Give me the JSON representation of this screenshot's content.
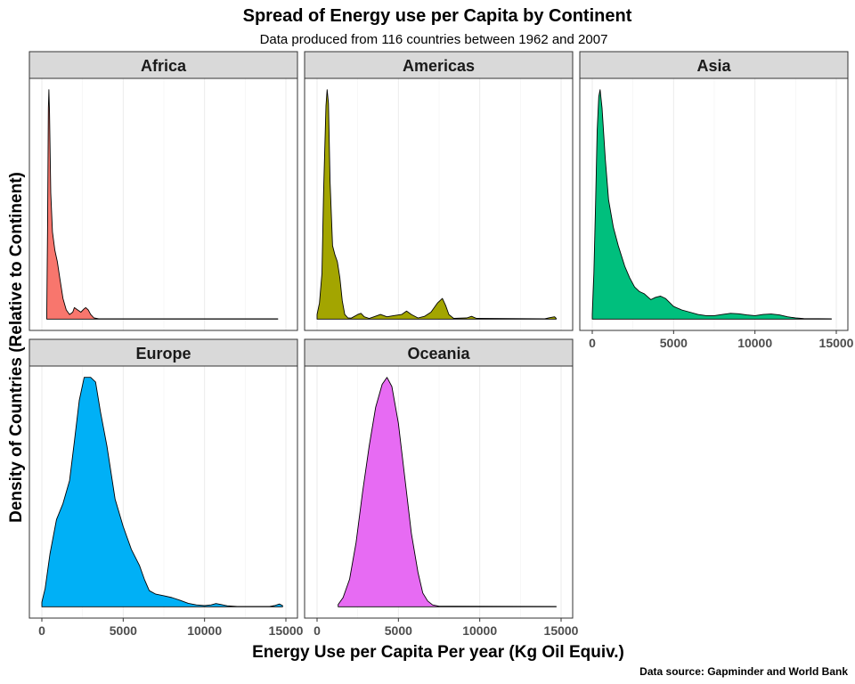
{
  "chart_data": {
    "type": "area",
    "title": "Spread of Energy use per Capita by Continent",
    "subtitle": "Data produced from 116 countries between 1962 and 2007",
    "xlabel": "Energy Use per Capita Per year (Kg Oil Equiv.)",
    "ylabel": "Density of Countries (Relative to Continent)",
    "caption": "Data source: Gapminder and World Bank",
    "xlim": [
      0,
      15000
    ],
    "x_ticks": [
      0,
      5000,
      10000,
      15000
    ],
    "x_tick_labels": [
      "0",
      "5000",
      "10000",
      "15000"
    ],
    "grid": true,
    "y_scale": "free (relative to continent)",
    "facets": [
      {
        "name": "Africa",
        "color": "#F8766D",
        "points": [
          [
            300,
            0.02
          ],
          [
            350,
            0.4
          ],
          [
            400,
            0.92
          ],
          [
            430,
            1.0
          ],
          [
            470,
            0.9
          ],
          [
            550,
            0.55
          ],
          [
            650,
            0.38
          ],
          [
            800,
            0.3
          ],
          [
            950,
            0.25
          ],
          [
            1100,
            0.18
          ],
          [
            1300,
            0.09
          ],
          [
            1500,
            0.04
          ],
          [
            1700,
            0.02
          ],
          [
            1900,
            0.03
          ],
          [
            2000,
            0.05
          ],
          [
            2200,
            0.04
          ],
          [
            2400,
            0.03
          ],
          [
            2600,
            0.045
          ],
          [
            2700,
            0.05
          ],
          [
            2850,
            0.04
          ],
          [
            3000,
            0.02
          ],
          [
            3200,
            0.005
          ],
          [
            3500,
            0.001
          ],
          [
            14500,
            0.001
          ]
        ]
      },
      {
        "name": "Americas",
        "color": "#A3A500",
        "points": [
          [
            0,
            0.02
          ],
          [
            150,
            0.07
          ],
          [
            300,
            0.2
          ],
          [
            400,
            0.55
          ],
          [
            550,
            0.93
          ],
          [
            620,
            1.0
          ],
          [
            700,
            0.94
          ],
          [
            800,
            0.6
          ],
          [
            950,
            0.32
          ],
          [
            1100,
            0.28
          ],
          [
            1250,
            0.25
          ],
          [
            1400,
            0.18
          ],
          [
            1550,
            0.08
          ],
          [
            1700,
            0.02
          ],
          [
            1900,
            0.005
          ],
          [
            2100,
            0.004
          ],
          [
            2500,
            0.02
          ],
          [
            2700,
            0.025
          ],
          [
            2900,
            0.01
          ],
          [
            3200,
            0.003
          ],
          [
            3500,
            0.01
          ],
          [
            3900,
            0.02
          ],
          [
            4300,
            0.01
          ],
          [
            4700,
            0.015
          ],
          [
            5200,
            0.02
          ],
          [
            5500,
            0.035
          ],
          [
            5800,
            0.02
          ],
          [
            6200,
            0.005
          ],
          [
            6600,
            0.012
          ],
          [
            7000,
            0.03
          ],
          [
            7400,
            0.07
          ],
          [
            7700,
            0.09
          ],
          [
            7900,
            0.06
          ],
          [
            8100,
            0.02
          ],
          [
            8400,
            0.003
          ],
          [
            9200,
            0.005
          ],
          [
            9500,
            0.012
          ],
          [
            9800,
            0.003
          ],
          [
            14000,
            0.001
          ],
          [
            14300,
            0.006
          ],
          [
            14600,
            0.01
          ],
          [
            14700,
            0.003
          ]
        ]
      },
      {
        "name": "Asia",
        "color": "#00BF7D",
        "points": [
          [
            0,
            0.02
          ],
          [
            100,
            0.2
          ],
          [
            200,
            0.5
          ],
          [
            300,
            0.82
          ],
          [
            400,
            0.97
          ],
          [
            480,
            1.0
          ],
          [
            600,
            0.92
          ],
          [
            800,
            0.7
          ],
          [
            1000,
            0.52
          ],
          [
            1300,
            0.4
          ],
          [
            1600,
            0.32
          ],
          [
            2000,
            0.23
          ],
          [
            2300,
            0.18
          ],
          [
            2600,
            0.14
          ],
          [
            2900,
            0.12
          ],
          [
            3200,
            0.11
          ],
          [
            3600,
            0.085
          ],
          [
            3900,
            0.095
          ],
          [
            4200,
            0.1
          ],
          [
            4500,
            0.09
          ],
          [
            5000,
            0.055
          ],
          [
            5500,
            0.04
          ],
          [
            6000,
            0.03
          ],
          [
            6500,
            0.02
          ],
          [
            7000,
            0.015
          ],
          [
            7500,
            0.015
          ],
          [
            8000,
            0.02
          ],
          [
            8500,
            0.025
          ],
          [
            9000,
            0.023
          ],
          [
            9500,
            0.018
          ],
          [
            10000,
            0.015
          ],
          [
            10500,
            0.02
          ],
          [
            11000,
            0.022
          ],
          [
            11500,
            0.018
          ],
          [
            12000,
            0.01
          ],
          [
            12500,
            0.005
          ],
          [
            13000,
            0.002
          ],
          [
            14700,
            0.001
          ]
        ]
      },
      {
        "name": "Europe",
        "color": "#00B0F6",
        "points": [
          [
            0,
            0.02
          ],
          [
            200,
            0.08
          ],
          [
            500,
            0.23
          ],
          [
            900,
            0.38
          ],
          [
            1300,
            0.45
          ],
          [
            1700,
            0.55
          ],
          [
            2000,
            0.72
          ],
          [
            2300,
            0.9
          ],
          [
            2600,
            1.0
          ],
          [
            3000,
            1.0
          ],
          [
            3300,
            0.98
          ],
          [
            3600,
            0.85
          ],
          [
            4000,
            0.7
          ],
          [
            4500,
            0.47
          ],
          [
            5000,
            0.35
          ],
          [
            5500,
            0.25
          ],
          [
            6000,
            0.18
          ],
          [
            6300,
            0.12
          ],
          [
            6600,
            0.07
          ],
          [
            7000,
            0.055
          ],
          [
            7500,
            0.048
          ],
          [
            8000,
            0.04
          ],
          [
            8500,
            0.028
          ],
          [
            9000,
            0.015
          ],
          [
            9500,
            0.008
          ],
          [
            10000,
            0.005
          ],
          [
            10400,
            0.008
          ],
          [
            10700,
            0.014
          ],
          [
            11000,
            0.01
          ],
          [
            11400,
            0.004
          ],
          [
            12000,
            0.001
          ],
          [
            14000,
            0.001
          ],
          [
            14300,
            0.005
          ],
          [
            14600,
            0.012
          ],
          [
            14800,
            0.005
          ]
        ]
      },
      {
        "name": "Oceania",
        "color": "#E76BF3",
        "points": [
          [
            1300,
            0.01
          ],
          [
            1600,
            0.04
          ],
          [
            2000,
            0.12
          ],
          [
            2400,
            0.28
          ],
          [
            2800,
            0.5
          ],
          [
            3200,
            0.7
          ],
          [
            3600,
            0.87
          ],
          [
            4000,
            0.97
          ],
          [
            4300,
            1.0
          ],
          [
            4600,
            0.96
          ],
          [
            5000,
            0.8
          ],
          [
            5400,
            0.56
          ],
          [
            5800,
            0.32
          ],
          [
            6200,
            0.15
          ],
          [
            6500,
            0.06
          ],
          [
            6800,
            0.025
          ],
          [
            7100,
            0.008
          ],
          [
            7500,
            0.002
          ],
          [
            14700,
            0.001
          ]
        ]
      }
    ]
  }
}
